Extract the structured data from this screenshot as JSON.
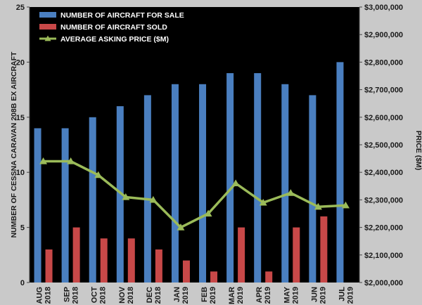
{
  "chart_data": {
    "type": "bar",
    "categories": [
      [
        "AUG",
        "2018"
      ],
      [
        "SEP",
        "2018"
      ],
      [
        "OCT",
        "2018"
      ],
      [
        "NOV",
        "2018"
      ],
      [
        "DEC",
        "2018"
      ],
      [
        "JAN",
        "2019"
      ],
      [
        "FEB",
        "2019"
      ],
      [
        "MAR",
        "2019"
      ],
      [
        "APR",
        "2019"
      ],
      [
        "MAY",
        "2019"
      ],
      [
        "JUN",
        "2019"
      ],
      [
        "JUL",
        "2019"
      ]
    ],
    "series": [
      {
        "name": "NUMBER OF AIRCRAFT FOR SALE",
        "type": "bar",
        "axis": "left",
        "color": "#4a7fc0",
        "values": [
          14,
          14,
          15,
          16,
          17,
          18,
          18,
          19,
          19,
          18,
          17,
          20
        ]
      },
      {
        "name": "NUMBER OF AIRCRAFT SOLD",
        "type": "bar",
        "axis": "left",
        "color": "#c84848",
        "values": [
          3,
          5,
          4,
          4,
          3,
          2,
          1,
          5,
          1,
          5,
          6,
          0
        ]
      },
      {
        "name": "AVERAGE ASKING PRICE ($M)",
        "type": "line",
        "axis": "right",
        "color": "#9bbb59",
        "marker": "triangle",
        "values": [
          2440000,
          2440000,
          2390000,
          2310000,
          2300000,
          2200000,
          2250000,
          2360000,
          2290000,
          2325000,
          2275000,
          2280000
        ]
      }
    ],
    "ylabel": "NUMBER OF CESSNA CARAVAN 208B EX AIRCRAFT",
    "y2label": "PRICE ($M)",
    "ylim": [
      0,
      25
    ],
    "yticks": [
      0,
      5,
      10,
      15,
      20,
      25
    ],
    "y2lim": [
      2000000,
      3000000
    ],
    "y2ticks": [
      "$2,000,000",
      "$2,100,000",
      "$2,200,000",
      "$2,300,000",
      "$2,400,000",
      "$2,500,000",
      "$2,600,000",
      "$2,700,000",
      "$2,800,000",
      "$2,900,000",
      "$3,000,000"
    ],
    "grid": false,
    "legend_position": "top-left",
    "plot_background": "#000000",
    "page_background": "#c9c9c9"
  }
}
